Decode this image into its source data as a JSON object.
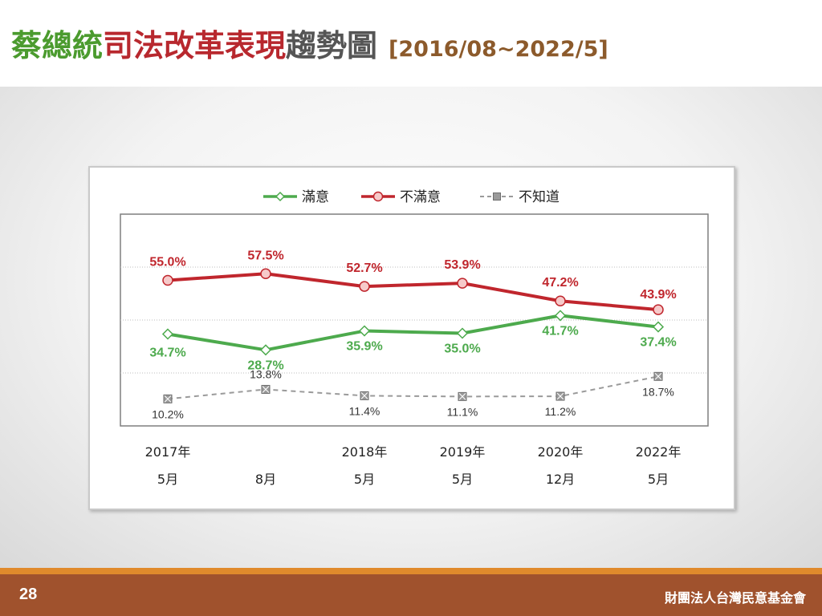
{
  "title": {
    "part1": "蔡總統",
    "part2": "司法改革表現",
    "part3": "趨勢圖",
    "range": "[2016/08~2022/5]"
  },
  "colors": {
    "satisfied": "#4daa4d",
    "dissatisfied": "#c0262d",
    "dontknow": "#9a9a9a",
    "title_green": "#4b9b2e",
    "title_red": "#b8282e",
    "footer": "#a0522d",
    "footer_line": "#e08a2c"
  },
  "footer": {
    "page_number": "28",
    "org": "財團法人台灣民意基金會"
  },
  "chart_data": {
    "type": "line",
    "categories": [
      [
        "2017年",
        "5月"
      ],
      [
        "",
        "8月"
      ],
      [
        "2018年",
        "5月"
      ],
      [
        "2019年",
        "5月"
      ],
      [
        "2020年",
        "12月"
      ],
      [
        "2022年",
        "5月"
      ]
    ],
    "series": [
      {
        "name": "滿意",
        "key": "satisfied",
        "marker": "diamond",
        "line": "solid",
        "values": [
          34.7,
          28.7,
          35.9,
          35.0,
          41.7,
          37.4
        ],
        "labels": [
          "34.7%",
          "28.7%",
          "35.9%",
          "35.0%",
          "41.7%",
          "37.4%"
        ]
      },
      {
        "name": "不滿意",
        "key": "dissatisfied",
        "marker": "circle",
        "line": "solid",
        "values": [
          55.0,
          57.5,
          52.7,
          53.9,
          47.2,
          43.9
        ],
        "labels": [
          "55.0%",
          "57.5%",
          "52.7%",
          "53.9%",
          "47.2%",
          "43.9%"
        ]
      },
      {
        "name": "不知道",
        "key": "dontknow",
        "marker": "square-x",
        "line": "dashed",
        "values": [
          10.2,
          13.8,
          11.4,
          11.1,
          11.2,
          18.7
        ],
        "labels": [
          "10.2%",
          "13.8%",
          "11.4%",
          "11.1%",
          "11.2%",
          "18.7%"
        ]
      }
    ],
    "ylim": [
      0,
      80
    ],
    "gridlines": [
      20,
      40,
      60
    ],
    "legend_position": "top-center",
    "xlabel": "",
    "ylabel": ""
  }
}
